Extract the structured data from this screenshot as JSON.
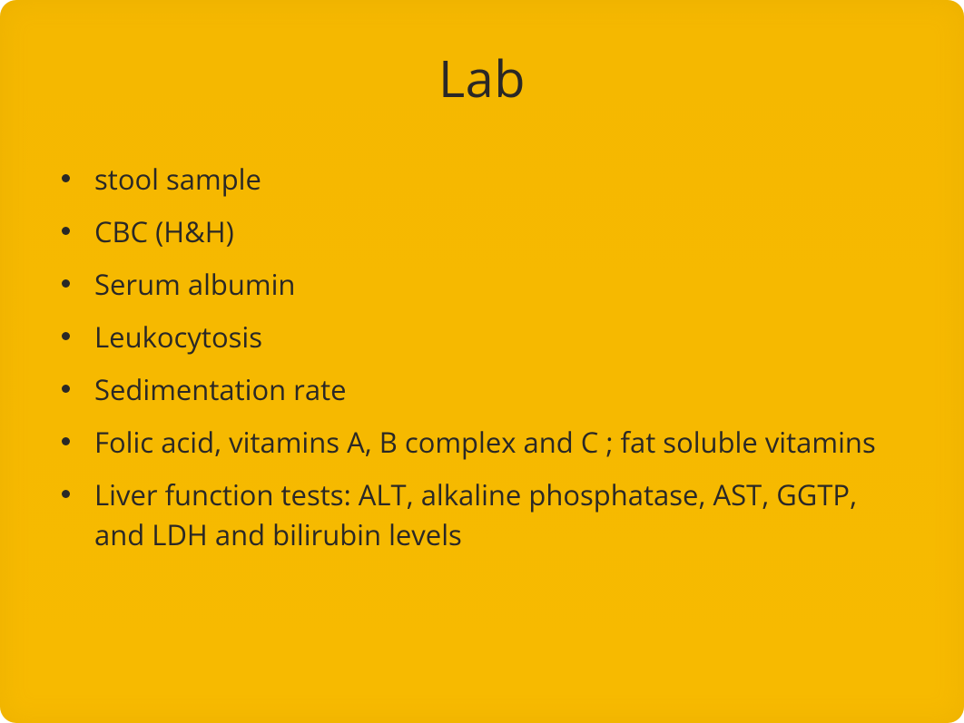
{
  "slide": {
    "title": "Lab",
    "background_color": "#f6b900",
    "text_color": "#2a2826",
    "title_fontsize": 56,
    "body_fontsize": 31,
    "border_radius": 18,
    "bullets": [
      "stool sample",
      "CBC (H&H)",
      "Serum albumin",
      "Leukocytosis",
      "Sedimentation rate",
      "Folic acid, vitamins  A, B complex and C ; fat soluble vitamins",
      "Liver function tests: ALT, alkaline phosphatase, AST, GGTP, and LDH and bilirubin levels"
    ]
  }
}
